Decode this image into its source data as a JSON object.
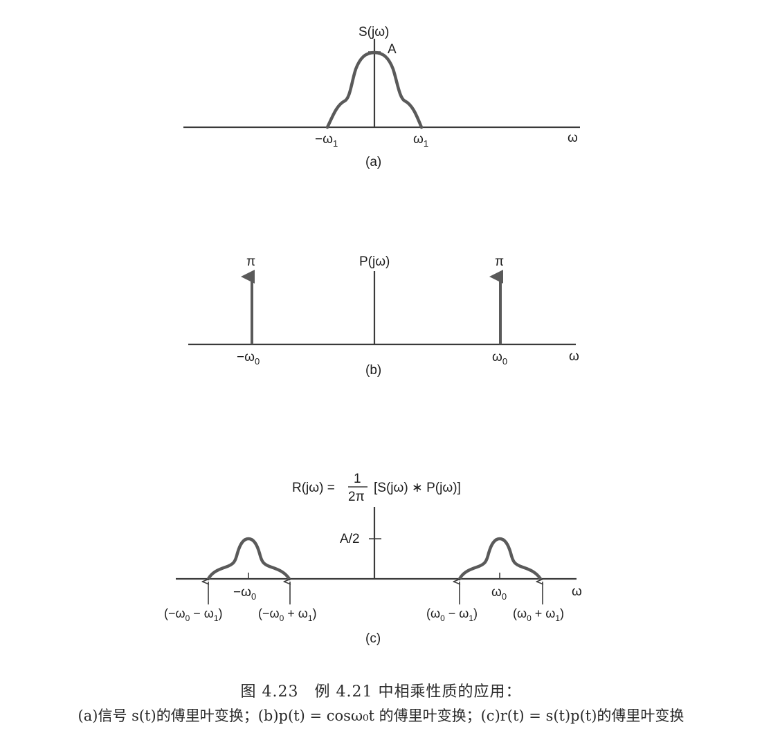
{
  "panel_a": {
    "ylabel": "S(jω)",
    "peak_label": "A",
    "tick_left": "−ω",
    "tick_left_sub": "1",
    "tick_right": "ω",
    "tick_right_sub": "1",
    "xlabel": "ω",
    "panel_label": "(a)"
  },
  "panel_b": {
    "ylabel": "P(jω)",
    "impulse_left_label": "π",
    "impulse_right_label": "π",
    "tick_left": "−ω",
    "tick_left_sub": "0",
    "tick_right": "ω",
    "tick_right_sub": "0",
    "xlabel": "ω",
    "panel_label": "(b)"
  },
  "panel_c": {
    "eq_lhs": "R(jω) =",
    "eq_num": "1",
    "eq_den": "2π",
    "eq_rhs": "[S(jω) ∗ P(jω)]",
    "level_label": "A/2",
    "center_left": "−ω",
    "center_left_sub": "0",
    "center_right": "ω",
    "center_right_sub": "0",
    "edge_ll_a": "(−ω",
    "edge_ll_b": "0",
    "edge_ll_c": " − ω",
    "edge_ll_d": "1",
    "edge_ll_e": ")",
    "edge_lr_a": "(−ω",
    "edge_lr_b": "0",
    "edge_lr_c": " + ω",
    "edge_lr_d": "1",
    "edge_lr_e": ")",
    "edge_rl_a": "(ω",
    "edge_rl_b": "0",
    "edge_rl_c": " − ω",
    "edge_rl_d": "1",
    "edge_rl_e": ")",
    "edge_rr_a": "(ω",
    "edge_rr_b": "0",
    "edge_rr_c": " + ω",
    "edge_rr_d": "1",
    "edge_rr_e": ")",
    "xlabel": "ω",
    "panel_label": "(c)"
  },
  "caption": {
    "line1": "图 4.23　例 4.21 中相乘性质的应用：",
    "line2": "(a)信号 s(t)的傅里叶变换；(b)p(t) = cosω₀t 的傅里叶变换；(c)r(t) = s(t)p(t)的傅里叶变换"
  }
}
